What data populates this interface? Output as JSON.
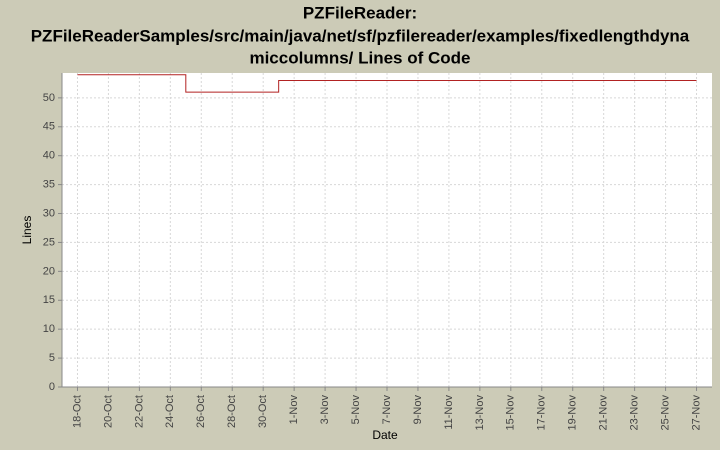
{
  "chart_data": {
    "type": "step",
    "title": [
      "PZFileReader:",
      "PZFileReaderSamples/src/main/java/net/sf/pzfilereader/examples/fixedlengthdyna",
      "miccolumns/ Lines of Code"
    ],
    "x_label": "Date",
    "y_label": "Lines",
    "series": [
      {
        "name": "Lines of Code",
        "color": "#b22222",
        "x": [
          "18-Oct",
          "25-Oct",
          "31-Oct",
          "27-Nov"
        ],
        "values": [
          54,
          51,
          53,
          53
        ]
      }
    ],
    "xlim": [
      "17-Oct",
      "28-Nov"
    ],
    "xticks": [
      "18-Oct",
      "20-Oct",
      "22-Oct",
      "24-Oct",
      "26-Oct",
      "28-Oct",
      "30-Oct",
      "1-Nov",
      "3-Nov",
      "5-Nov",
      "7-Nov",
      "9-Nov",
      "11-Nov",
      "13-Nov",
      "15-Nov",
      "17-Nov",
      "19-Nov",
      "21-Nov",
      "23-Nov",
      "25-Nov",
      "27-Nov"
    ],
    "ylim": [
      0,
      54.3
    ],
    "yticks": [
      0,
      5,
      10,
      15,
      20,
      25,
      30,
      35,
      40,
      45,
      50
    ],
    "grid": true
  }
}
